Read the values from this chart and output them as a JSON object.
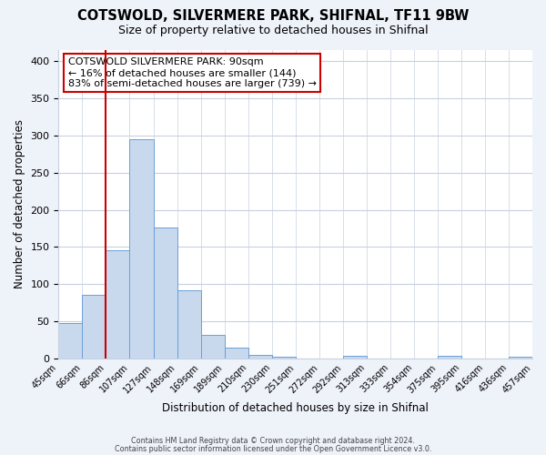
{
  "title": "COTSWOLD, SILVERMERE PARK, SHIFNAL, TF11 9BW",
  "subtitle": "Size of property relative to detached houses in Shifnal",
  "xlabel": "Distribution of detached houses by size in Shifnal",
  "ylabel": "Number of detached properties",
  "bar_color": "#c8d9ee",
  "bar_edge_color": "#6a9fd8",
  "bin_labels": [
    "45sqm",
    "66sqm",
    "86sqm",
    "107sqm",
    "127sqm",
    "148sqm",
    "169sqm",
    "189sqm",
    "210sqm",
    "230sqm",
    "251sqm",
    "272sqm",
    "292sqm",
    "313sqm",
    "333sqm",
    "354sqm",
    "375sqm",
    "395sqm",
    "416sqm",
    "436sqm",
    "457sqm"
  ],
  "bar_heights": [
    47,
    86,
    145,
    295,
    176,
    92,
    31,
    14,
    5,
    2,
    0,
    0,
    3,
    0,
    0,
    0,
    4,
    0,
    0,
    2
  ],
  "vline_x": 2.0,
  "vline_color": "#cc0000",
  "ylim": [
    0,
    415
  ],
  "yticks": [
    0,
    50,
    100,
    150,
    200,
    250,
    300,
    350,
    400
  ],
  "annotation_title": "COTSWOLD SILVERMERE PARK: 90sqm",
  "annotation_line1": "← 16% of detached houses are smaller (144)",
  "annotation_line2": "83% of semi-detached houses are larger (739) →",
  "footer_line1": "Contains HM Land Registry data © Crown copyright and database right 2024.",
  "footer_line2": "Contains public sector information licensed under the Open Government Licence v3.0.",
  "bg_color": "#eef2f9",
  "plot_bg_color": "#ffffff",
  "grid_color": "#c8d0e0"
}
